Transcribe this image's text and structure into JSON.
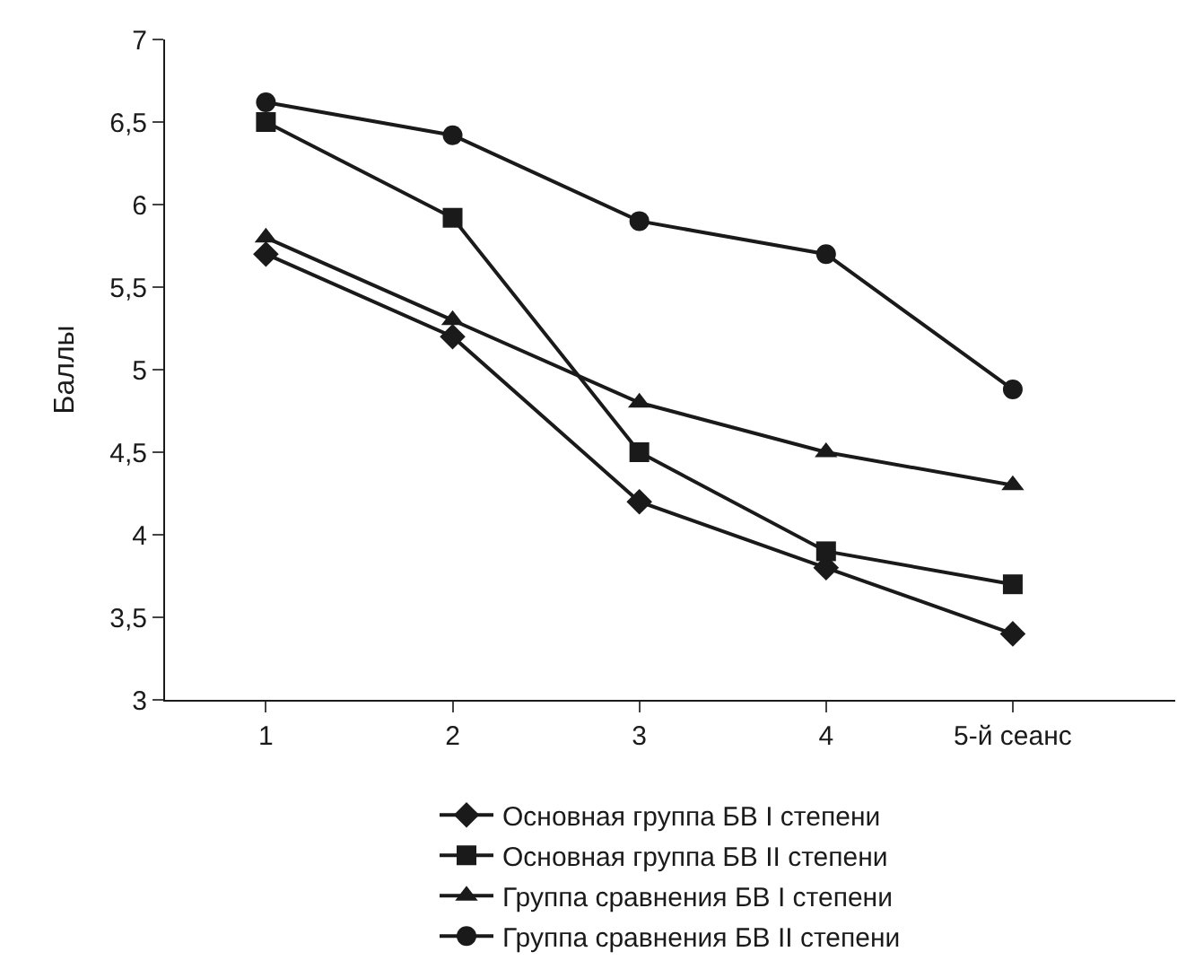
{
  "chart_data": {
    "type": "line",
    "ylabel": "Баллы",
    "categories": [
      "1",
      "2",
      "3",
      "4",
      "5-й сеанс"
    ],
    "ylim": [
      3,
      7
    ],
    "yticks": [
      3,
      {
        "value": 3.5,
        "label": "3,5"
      },
      4,
      {
        "value": 4.5,
        "label": "4,5"
      },
      5,
      {
        "value": 5.5,
        "label": "5,5"
      },
      6,
      {
        "value": 6.5,
        "label": "6,5"
      },
      7
    ],
    "legend": "bottom",
    "line_style": "solid",
    "series": [
      {
        "name": "Основная группа БВ I степени",
        "color": "#1a1a1a",
        "marker": "diamond",
        "values": [
          5.7,
          5.2,
          4.2,
          3.8,
          3.4
        ]
      },
      {
        "name": "Основная группа БВ II степени",
        "color": "#1a1a1a",
        "marker": "square",
        "values": [
          6.5,
          5.92,
          4.5,
          3.9,
          3.7
        ]
      },
      {
        "name": "Группа сравнения БВ I степени",
        "color": "#1a1a1a",
        "marker": "triangle",
        "values": [
          5.8,
          5.3,
          4.8,
          4.5,
          4.3
        ]
      },
      {
        "name": "Группа сравнения БВ II степени",
        "color": "#1a1a1a",
        "marker": "circle",
        "values": [
          6.62,
          6.42,
          5.9,
          5.7,
          4.88
        ]
      }
    ]
  }
}
